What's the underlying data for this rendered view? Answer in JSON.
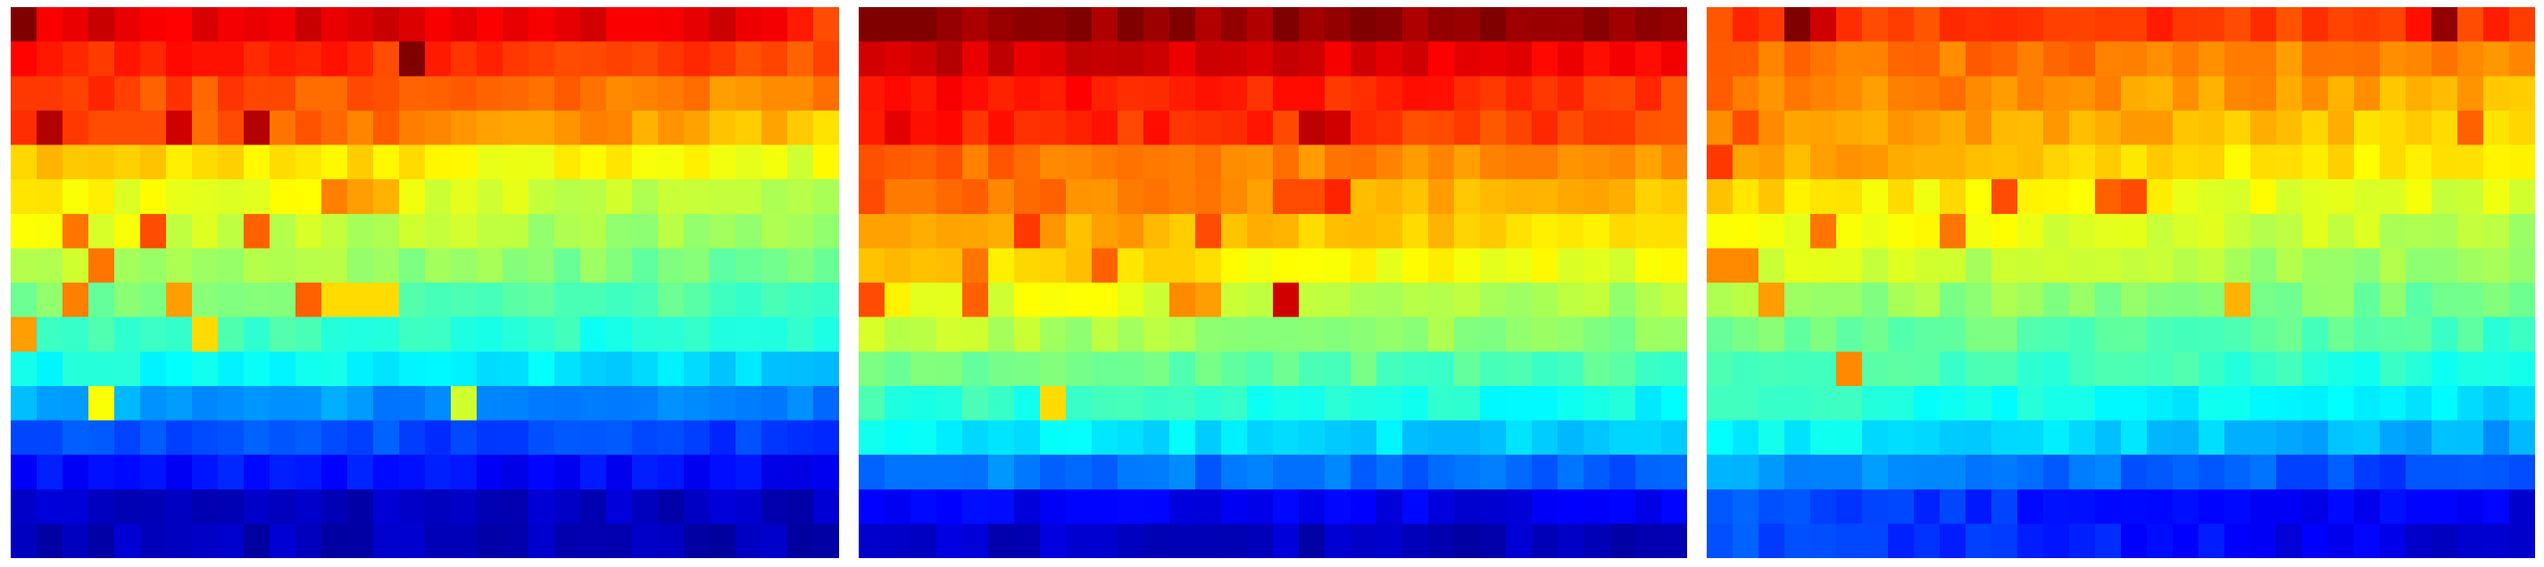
{
  "figure": {
    "background": "#ffffff"
  },
  "chart_data": {
    "type": "heatmap",
    "colormap": "jet",
    "value_range": [
      0,
      1
    ],
    "title": "",
    "xlabel": "",
    "ylabel": "",
    "axes_visible": false,
    "grid": false,
    "legend": "none",
    "panels": [
      {
        "rows": 16,
        "cols": 32,
        "row_values": [
          0.9,
          0.8,
          0.74,
          0.68,
          0.6,
          0.55,
          0.52,
          0.48,
          0.44,
          0.4,
          0.33,
          0.24,
          0.18,
          0.12,
          0.06,
          0.05
        ],
        "row_left_gradient": [
          0.0,
          0.05,
          0.08,
          0.15,
          0.08,
          0.08,
          0.08,
          0.08,
          0.06,
          0.05,
          0.06,
          0.05,
          0.03,
          0.02,
          0.01,
          0.01
        ],
        "hotspots": [
          [
            0,
            0,
            1.0
          ],
          [
            0,
            30,
            0.85
          ],
          [
            0,
            31,
            0.8
          ],
          [
            0,
            1,
            0.88
          ],
          [
            1,
            15,
            1.0
          ],
          [
            1,
            16,
            0.85
          ],
          [
            1,
            14,
            0.8
          ],
          [
            3,
            1,
            0.95
          ],
          [
            3,
            6,
            0.92
          ],
          [
            3,
            9,
            0.95
          ],
          [
            3,
            2,
            0.82
          ],
          [
            3,
            3,
            0.8
          ],
          [
            3,
            4,
            0.8
          ],
          [
            5,
            12,
            0.75
          ],
          [
            5,
            13,
            0.72
          ],
          [
            5,
            14,
            0.7
          ],
          [
            6,
            2,
            0.76
          ],
          [
            6,
            5,
            0.8
          ],
          [
            6,
            9,
            0.78
          ],
          [
            7,
            3,
            0.76
          ],
          [
            8,
            2,
            0.75
          ],
          [
            8,
            6,
            0.72
          ],
          [
            8,
            11,
            0.78
          ],
          [
            8,
            12,
            0.66
          ],
          [
            8,
            13,
            0.66
          ],
          [
            8,
            14,
            0.66
          ],
          [
            9,
            0,
            0.72
          ],
          [
            9,
            7,
            0.66
          ],
          [
            11,
            3,
            0.62
          ],
          [
            11,
            17,
            0.58
          ]
        ]
      },
      {
        "rows": 16,
        "cols": 32,
        "row_values": [
          0.98,
          0.88,
          0.82,
          0.8,
          0.72,
          0.68,
          0.64,
          0.6,
          0.54,
          0.5,
          0.44,
          0.38,
          0.32,
          0.22,
          0.1,
          0.06
        ],
        "row_left_gradient": [
          0.0,
          0.05,
          0.05,
          0.05,
          0.06,
          0.1,
          0.1,
          0.08,
          0.08,
          0.06,
          0.06,
          0.05,
          0.05,
          0.03,
          0.02,
          0.01
        ],
        "hotspots": [
          [
            0,
            0,
            1.0
          ],
          [
            0,
            1,
            1.0
          ],
          [
            0,
            2,
            1.0
          ],
          [
            0,
            8,
            1.0
          ],
          [
            0,
            10,
            1.0
          ],
          [
            0,
            12,
            1.0
          ],
          [
            0,
            14,
            0.98
          ],
          [
            0,
            16,
            1.0
          ],
          [
            0,
            18,
            0.98
          ],
          [
            0,
            22,
            0.98
          ],
          [
            0,
            24,
            1.0
          ],
          [
            1,
            2,
            0.92
          ],
          [
            1,
            19,
            0.92
          ],
          [
            1,
            20,
            0.9
          ],
          [
            3,
            1,
            0.9
          ],
          [
            3,
            2,
            0.86
          ],
          [
            3,
            17,
            0.94
          ],
          [
            3,
            18,
            0.92
          ],
          [
            5,
            7,
            0.78
          ],
          [
            5,
            16,
            0.8
          ],
          [
            5,
            17,
            0.8
          ],
          [
            5,
            18,
            0.84
          ],
          [
            6,
            6,
            0.82
          ],
          [
            6,
            13,
            0.8
          ],
          [
            7,
            4,
            0.76
          ],
          [
            7,
            9,
            0.78
          ],
          [
            8,
            0,
            0.8
          ],
          [
            8,
            4,
            0.78
          ],
          [
            8,
            12,
            0.74
          ],
          [
            8,
            13,
            0.72
          ],
          [
            8,
            16,
            0.92
          ],
          [
            11,
            7,
            0.66
          ]
        ]
      },
      {
        "rows": 16,
        "cols": 32,
        "row_values": [
          0.82,
          0.74,
          0.7,
          0.66,
          0.62,
          0.58,
          0.55,
          0.52,
          0.48,
          0.44,
          0.4,
          0.34,
          0.28,
          0.18,
          0.1,
          0.08
        ],
        "row_left_gradient": [
          0.0,
          0.03,
          0.06,
          0.08,
          0.1,
          0.08,
          0.08,
          0.06,
          0.06,
          0.05,
          0.06,
          0.08,
          0.1,
          0.1,
          0.1,
          0.12
        ],
        "hotspots": [
          [
            0,
            3,
            1.0
          ],
          [
            0,
            4,
            0.92
          ],
          [
            0,
            2,
            0.82
          ],
          [
            0,
            28,
            0.98
          ],
          [
            0,
            27,
            0.86
          ],
          [
            0,
            29,
            0.8
          ],
          [
            3,
            1,
            0.8
          ],
          [
            3,
            29,
            0.78
          ],
          [
            4,
            0,
            0.82
          ],
          [
            5,
            11,
            0.8
          ],
          [
            5,
            15,
            0.78
          ],
          [
            5,
            16,
            0.8
          ],
          [
            6,
            4,
            0.76
          ],
          [
            6,
            9,
            0.76
          ],
          [
            7,
            0,
            0.74
          ],
          [
            7,
            1,
            0.74
          ],
          [
            8,
            2,
            0.72
          ],
          [
            8,
            20,
            0.7
          ],
          [
            10,
            5,
            0.74
          ]
        ]
      }
    ]
  }
}
